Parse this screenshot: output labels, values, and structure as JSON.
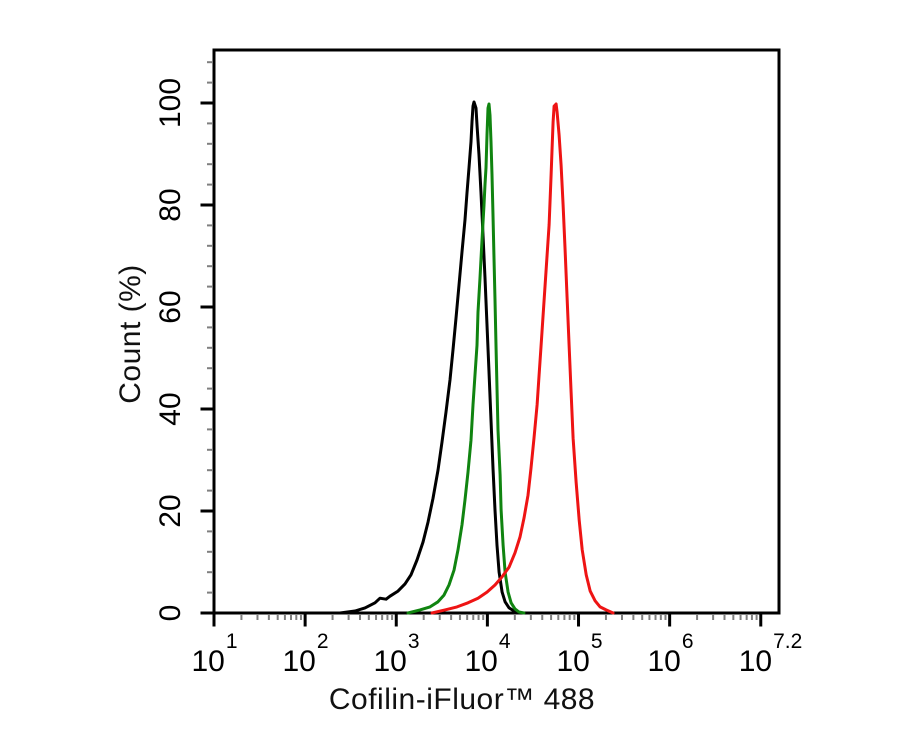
{
  "chart_data": {
    "type": "line",
    "subtype": "flow-cytometry-histogram-overlay",
    "title": "",
    "xlabel": "Cofilin-iFluor™ 488",
    "ylabel": "Count (%)",
    "x_scale": "log10",
    "x_range_exp": [
      1,
      7.2
    ],
    "y_range": [
      0,
      110.5
    ],
    "grid": false,
    "legend_position": "none",
    "frame": true,
    "x_major_ticks_exp": [
      1,
      2,
      3,
      4,
      5,
      6,
      7
    ],
    "x_tick_labels": [
      {
        "base": "10",
        "sup": "1",
        "center_exp": 1
      },
      {
        "base": "10",
        "sup": "2",
        "center_exp": 2
      },
      {
        "base": "10",
        "sup": "3",
        "center_exp": 3
      },
      {
        "base": "10",
        "sup": "4",
        "center_exp": 4
      },
      {
        "base": "10",
        "sup": "5",
        "center_exp": 5
      },
      {
        "base": "10",
        "sup": "6",
        "center_exp": 6
      },
      {
        "base": "10",
        "sup": "7.2",
        "center_exp": 7.1
      }
    ],
    "x_minor_ticks_rule": "multiples 2-9 within each decade, log spacing",
    "y_major_ticks": [
      0,
      20,
      40,
      60,
      80,
      100
    ],
    "y_minor_tick_step": 4,
    "colors": {
      "axis": "#000000",
      "minor_tick": "#7f7f7f",
      "background": "#ffffff"
    },
    "series": [
      {
        "name": "black-curve",
        "color": "#000000",
        "peak": {
          "x_exp": 3.85,
          "y_pct": 100
        },
        "points": [
          [
            2.383,
            0
          ],
          [
            2.547,
            0.4
          ],
          [
            2.657,
            1.0
          ],
          [
            2.767,
            2.0
          ],
          [
            2.822,
            2.9
          ],
          [
            2.888,
            2.7
          ],
          [
            2.931,
            3.3
          ],
          [
            3.019,
            4.3
          ],
          [
            3.096,
            5.7
          ],
          [
            3.162,
            7.5
          ],
          [
            3.228,
            10.4
          ],
          [
            3.293,
            13.9
          ],
          [
            3.348,
            17.8
          ],
          [
            3.403,
            22.5
          ],
          [
            3.458,
            28.0
          ],
          [
            3.502,
            33.5
          ],
          [
            3.546,
            39.4
          ],
          [
            3.59,
            45.7
          ],
          [
            3.623,
            51.6
          ],
          [
            3.656,
            57.8
          ],
          [
            3.688,
            64.3
          ],
          [
            3.721,
            70.8
          ],
          [
            3.754,
            77.1
          ],
          [
            3.776,
            82.4
          ],
          [
            3.798,
            87.3
          ],
          [
            3.82,
            92.4
          ],
          [
            3.831,
            96.3
          ],
          [
            3.842,
            99.4
          ],
          [
            3.853,
            100.2
          ],
          [
            3.875,
            99.0
          ],
          [
            3.886,
            95.7
          ],
          [
            3.908,
            89.8
          ],
          [
            3.93,
            82.4
          ],
          [
            3.952,
            74.1
          ],
          [
            3.974,
            65.7
          ],
          [
            3.996,
            56.5
          ],
          [
            4.018,
            47.3
          ],
          [
            4.04,
            37.8
          ],
          [
            4.062,
            28.4
          ],
          [
            4.084,
            20.2
          ],
          [
            4.106,
            13.3
          ],
          [
            4.128,
            8.0
          ],
          [
            4.161,
            4.1
          ],
          [
            4.194,
            2.2
          ],
          [
            4.238,
            1.0
          ],
          [
            4.292,
            0.4
          ],
          [
            4.358,
            0
          ]
        ]
      },
      {
        "name": "green-curve",
        "color": "#108410",
        "peak": {
          "x_exp": 4.01,
          "y_pct": 100
        },
        "points": [
          [
            3.129,
            0
          ],
          [
            3.261,
            0.6
          ],
          [
            3.37,
            1.2
          ],
          [
            3.458,
            2.2
          ],
          [
            3.524,
            3.5
          ],
          [
            3.579,
            5.5
          ],
          [
            3.634,
            8.4
          ],
          [
            3.678,
            12.4
          ],
          [
            3.721,
            17.3
          ],
          [
            3.754,
            22.2
          ],
          [
            3.787,
            27.6
          ],
          [
            3.82,
            33.9
          ],
          [
            3.842,
            40.8
          ],
          [
            3.864,
            46.7
          ],
          [
            3.886,
            52.5
          ],
          [
            3.897,
            59.0
          ],
          [
            3.919,
            65.7
          ],
          [
            3.941,
            73.1
          ],
          [
            3.963,
            80.0
          ],
          [
            3.974,
            84.0
          ],
          [
            3.985,
            87.3
          ],
          [
            3.996,
            93.7
          ],
          [
            4.007,
            99.0
          ],
          [
            4.018,
            99.8
          ],
          [
            4.029,
            97.6
          ],
          [
            4.04,
            92.4
          ],
          [
            4.051,
            85.9
          ],
          [
            4.062,
            78.0
          ],
          [
            4.073,
            69.6
          ],
          [
            4.084,
            61.4
          ],
          [
            4.095,
            52.5
          ],
          [
            4.106,
            44.1
          ],
          [
            4.117,
            35.9
          ],
          [
            4.139,
            27.1
          ],
          [
            4.15,
            20.2
          ],
          [
            4.172,
            13.3
          ],
          [
            4.194,
            8.0
          ],
          [
            4.227,
            4.1
          ],
          [
            4.26,
            2.0
          ],
          [
            4.303,
            0.8
          ],
          [
            4.347,
            0.2
          ],
          [
            4.402,
            0
          ]
        ]
      },
      {
        "name": "red-curve",
        "color": "#ee1414",
        "peak": {
          "x_exp": 4.73,
          "y_pct": 99.8
        },
        "points": [
          [
            3.392,
            0
          ],
          [
            3.535,
            0.6
          ],
          [
            3.667,
            1.2
          ],
          [
            3.787,
            2.0
          ],
          [
            3.897,
            2.9
          ],
          [
            3.996,
            4.1
          ],
          [
            4.084,
            5.5
          ],
          [
            4.161,
            7.1
          ],
          [
            4.238,
            9.0
          ],
          [
            4.303,
            11.8
          ],
          [
            4.358,
            14.9
          ],
          [
            4.402,
            18.6
          ],
          [
            4.446,
            23.1
          ],
          [
            4.479,
            28.4
          ],
          [
            4.512,
            34.3
          ],
          [
            4.545,
            40.8
          ],
          [
            4.567,
            46.7
          ],
          [
            4.589,
            52.5
          ],
          [
            4.611,
            58.4
          ],
          [
            4.633,
            64.3
          ],
          [
            4.655,
            70.2
          ],
          [
            4.677,
            76.1
          ],
          [
            4.688,
            81.0
          ],
          [
            4.699,
            85.9
          ],
          [
            4.71,
            91.2
          ],
          [
            4.721,
            96.3
          ],
          [
            4.732,
            99.4
          ],
          [
            4.754,
            99.8
          ],
          [
            4.765,
            98.2
          ],
          [
            4.787,
            93.7
          ],
          [
            4.809,
            87.8
          ],
          [
            4.831,
            80.0
          ],
          [
            4.853,
            71.2
          ],
          [
            4.875,
            61.8
          ],
          [
            4.897,
            52.5
          ],
          [
            4.919,
            43.3
          ],
          [
            4.941,
            34.3
          ],
          [
            4.974,
            25.7
          ],
          [
            5.007,
            18.2
          ],
          [
            5.04,
            12.4
          ],
          [
            5.084,
            7.5
          ],
          [
            5.128,
            4.3
          ],
          [
            5.182,
            2.4
          ],
          [
            5.237,
            1.2
          ],
          [
            5.303,
            0.6
          ],
          [
            5.38,
            0
          ]
        ]
      }
    ]
  }
}
